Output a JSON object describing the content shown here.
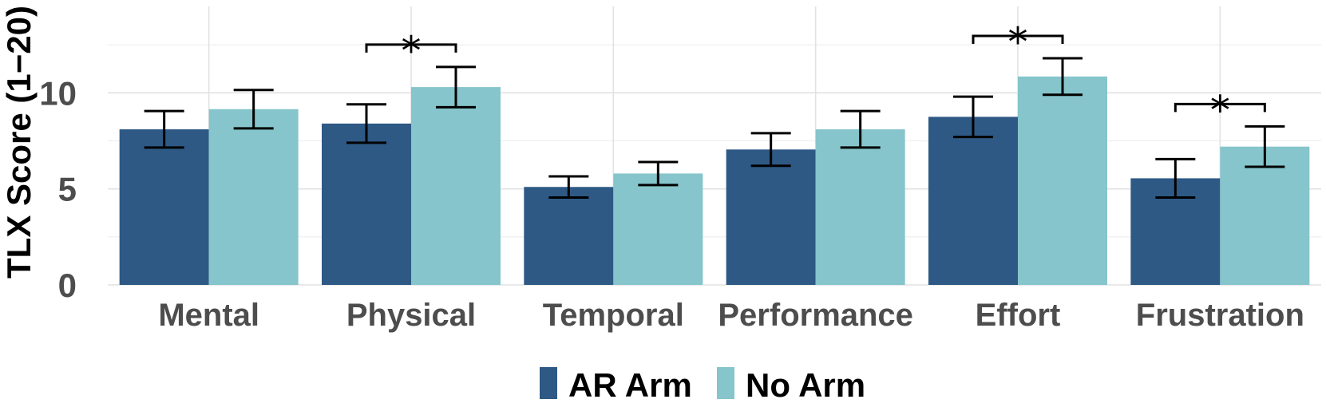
{
  "chart_data": {
    "type": "bar",
    "title": "",
    "xlabel": "",
    "ylabel": "TLX Score (1−20)",
    "ylim": [
      0,
      14.5
    ],
    "yticks": [
      0,
      5,
      10
    ],
    "grid": true,
    "legend_position": "bottom",
    "categories": [
      "Mental",
      "Physical",
      "Temporal",
      "Performance",
      "Effort",
      "Frustration"
    ],
    "series": [
      {
        "name": "AR Arm",
        "color": "#2e5985",
        "values": [
          8.1,
          8.4,
          5.1,
          7.05,
          8.75,
          5.55
        ],
        "error": [
          0.95,
          1.0,
          0.55,
          0.85,
          1.05,
          1.0
        ]
      },
      {
        "name": "No Arm",
        "color": "#85c5cb",
        "values": [
          9.15,
          10.3,
          5.8,
          8.1,
          10.85,
          7.2
        ],
        "error": [
          1.0,
          1.05,
          0.6,
          0.95,
          0.95,
          1.05
        ]
      }
    ],
    "significance": [
      {
        "category": "Physical",
        "label": "*"
      },
      {
        "category": "Effort",
        "label": "*"
      },
      {
        "category": "Frustration",
        "label": "*"
      }
    ]
  }
}
